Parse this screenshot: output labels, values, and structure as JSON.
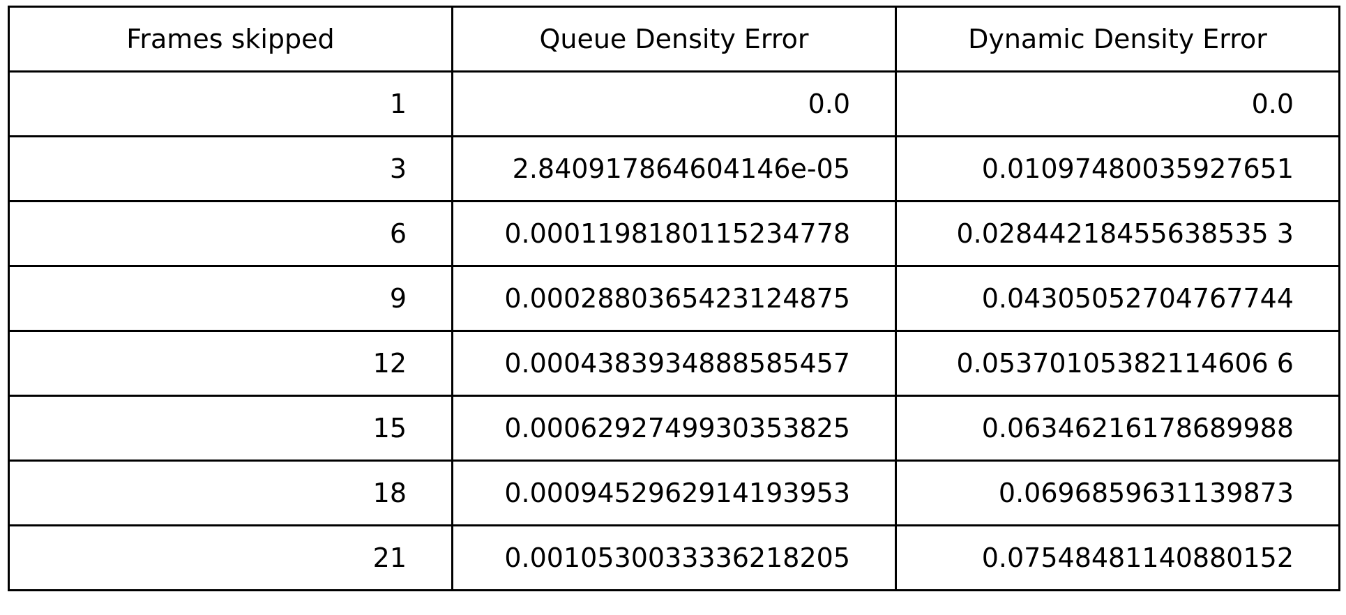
{
  "chart_data": {
    "type": "table",
    "columns": [
      "Frames skipped",
      "Queue Density Error",
      "Dynamic Density Error"
    ],
    "rows": [
      [
        "1",
        "0.0",
        "0.0"
      ],
      [
        "3",
        "2.840917864604146e-05",
        "0.01097480035927651"
      ],
      [
        "6",
        "0.0001198180115234778",
        "0.02844218455638535 3"
      ],
      [
        "9",
        "0.0002880365423124875",
        "0.04305052704767744"
      ],
      [
        "12",
        "0.0004383934888585457",
        "0.05370105382114606 6"
      ],
      [
        "15",
        "0.0006292749930353825",
        "0.06346216178689988"
      ],
      [
        "18",
        "0.0009452962914193953",
        "0.0696859631139873"
      ],
      [
        "21",
        "0.0010530033336218205",
        "0.07548481140880152"
      ]
    ]
  }
}
